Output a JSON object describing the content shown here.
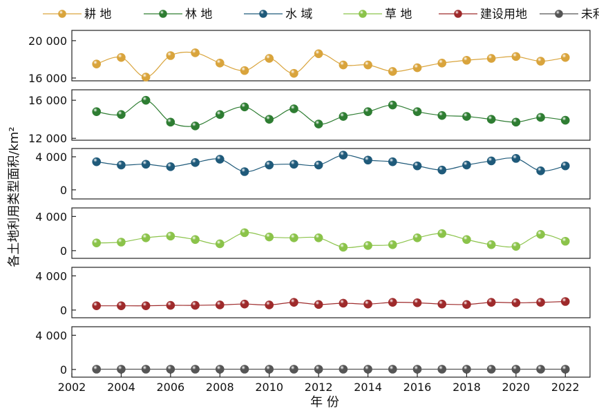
{
  "chart_data": {
    "type": "line",
    "xlabel": "年 份",
    "ylabel": "各土地利用类型面积/km²",
    "x": [
      2003,
      2004,
      2005,
      2006,
      2007,
      2008,
      2009,
      2010,
      2011,
      2012,
      2013,
      2014,
      2015,
      2016,
      2017,
      2018,
      2019,
      2020,
      2021,
      2022
    ],
    "xlim": [
      2002,
      2023
    ],
    "xticks": [
      2002,
      2004,
      2006,
      2008,
      2010,
      2012,
      2014,
      2016,
      2018,
      2020,
      2022
    ],
    "xtick_labels": [
      "2002",
      "2004",
      "2006",
      "2008",
      "2010",
      "2012",
      "2014",
      "2016",
      "2018",
      "2020",
      "2022"
    ],
    "grid": false,
    "legend_position": "top",
    "series": [
      {
        "name": "耕 地",
        "color": "#D9A43C",
        "ylim": [
          15700,
          21100
        ],
        "yticks": [
          16000,
          20000
        ],
        "ytick_labels": [
          "16 000",
          "20 000"
        ],
        "values": [
          17500,
          18200,
          16100,
          18400,
          18700,
          17600,
          16800,
          18100,
          16500,
          18600,
          17400,
          17400,
          16700,
          17100,
          17600,
          17900,
          18100,
          18300,
          17800,
          18200
        ]
      },
      {
        "name": "林 地",
        "color": "#2E7D32",
        "ylim": [
          11800,
          17100
        ],
        "yticks": [
          12000,
          16000
        ],
        "ytick_labels": [
          "12 000",
          "16 000"
        ],
        "values": [
          14800,
          14500,
          16000,
          13700,
          13300,
          14500,
          15300,
          14000,
          15100,
          13500,
          14300,
          14800,
          15500,
          14800,
          14400,
          14300,
          14000,
          13700,
          14200,
          13900
        ]
      },
      {
        "name": "水 域",
        "color": "#1F5A7A",
        "ylim": [
          -1100,
          5000
        ],
        "yticks": [
          0,
          4000
        ],
        "ytick_labels": [
          "0",
          "4 000"
        ],
        "values": [
          3400,
          3000,
          3100,
          2800,
          3300,
          3700,
          2200,
          3000,
          3100,
          3000,
          4200,
          3600,
          3400,
          2900,
          2400,
          3000,
          3500,
          3800,
          2300,
          2900
        ]
      },
      {
        "name": "草 地",
        "color": "#8BC34A",
        "ylim": [
          -900,
          5000
        ],
        "yticks": [
          0,
          4000
        ],
        "ytick_labels": [
          "0",
          "4 000"
        ],
        "values": [
          900,
          1000,
          1500,
          1700,
          1300,
          800,
          2100,
          1600,
          1500,
          1500,
          400,
          600,
          700,
          1500,
          2000,
          1300,
          700,
          500,
          1900,
          1100
        ]
      },
      {
        "name": "建设用地",
        "color": "#9E2A2B",
        "ylim": [
          -900,
          5000
        ],
        "yticks": [
          0,
          4000
        ],
        "ytick_labels": [
          "0",
          "4 000"
        ],
        "values": [
          500,
          500,
          500,
          550,
          550,
          600,
          700,
          600,
          900,
          650,
          800,
          700,
          900,
          850,
          700,
          650,
          900,
          850,
          900,
          1000
        ]
      },
      {
        "name": "未利用地",
        "color": "#555555",
        "ylim": [
          -900,
          5000
        ],
        "yticks": [
          0,
          4000
        ],
        "ytick_labels": [
          "0",
          "4 000"
        ],
        "values": [
          30,
          30,
          30,
          30,
          30,
          30,
          30,
          30,
          30,
          30,
          30,
          30,
          30,
          30,
          30,
          30,
          30,
          30,
          30,
          30
        ]
      }
    ]
  }
}
